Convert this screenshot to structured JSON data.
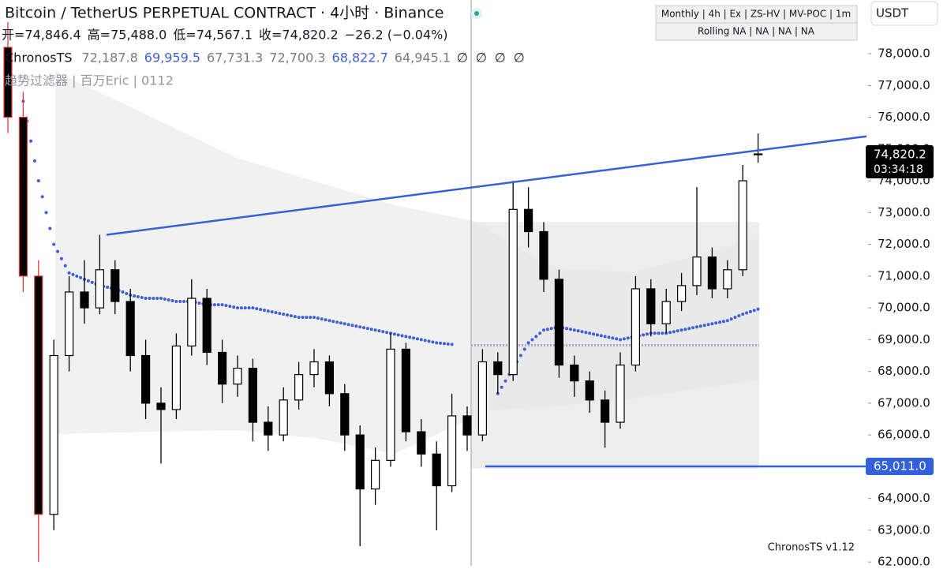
{
  "chart_data": {
    "type": "candlestick",
    "title": "Bitcoin / TetherUS PERPETUAL CONTRACT · 4小时 · Binance",
    "ohlc_text": [
      "开=74,846.4",
      "高=75,488.0",
      "低=74,567.1",
      "收=74,820.2",
      "−26.2 (−0.04%)"
    ],
    "indicator": {
      "name": "ChronosTS",
      "values": [
        72187.8,
        69959.5,
        67731.3,
        72700.3,
        68822.7,
        64945.1
      ],
      "value_labels": [
        "72,187.8",
        "69,959.5",
        "67,731.3",
        "72,700.3",
        "68,822.7",
        "64,945.1"
      ],
      "extras": [
        "∅",
        "∅",
        "∅",
        "∅"
      ]
    },
    "subtitle": "趋势过滤器 | 百万Eric | 0112",
    "info_box": [
      "Monthly | 4h | Ex | ZS-HV | MV-POC | 1m",
      "Rolling NA | NA | NA | NA"
    ],
    "currency": "USDT",
    "footer": "ChronosTS v1.12",
    "close_label": "74,820.2",
    "countdown": "03:34:18",
    "support": {
      "value": 65011,
      "label": "65,011.0"
    },
    "trend_line": {
      "start": 72300,
      "end": 75400
    },
    "ylim": [
      61880,
      79690
    ],
    "yticks": [
      {
        "value": 62000,
        "label": "62,000.0"
      },
      {
        "value": 63000,
        "label": "63,000.0"
      },
      {
        "value": 64000,
        "label": "64,000.0"
      },
      {
        "value": 65000,
        "label": "65,000.0"
      },
      {
        "value": 66000,
        "label": "66,000.0"
      },
      {
        "value": 67000,
        "label": "67,000.0"
      },
      {
        "value": 68000,
        "label": "68,000.0"
      },
      {
        "value": 69000,
        "label": "69,000.0"
      },
      {
        "value": 70000,
        "label": "70,000.0"
      },
      {
        "value": 71000,
        "label": "71,000.0"
      },
      {
        "value": 72000,
        "label": "72,000.0"
      },
      {
        "value": 73000,
        "label": "73,000.0"
      },
      {
        "value": 74000,
        "label": "74,000.0"
      },
      {
        "value": 75000,
        "label": "75,000.0"
      },
      {
        "value": 76000,
        "label": "76,000.0"
      },
      {
        "value": 77000,
        "label": "77,000.0"
      },
      {
        "value": 78000,
        "label": "78,000.0"
      }
    ],
    "candles": [
      {
        "open": 78200,
        "high": 79000,
        "low": 75500,
        "close": 76000
      },
      {
        "open": 76000,
        "high": 76800,
        "low": 70500,
        "close": 71000
      },
      {
        "open": 71000,
        "high": 71500,
        "low": 62000,
        "close": 63500
      },
      {
        "open": 63500,
        "high": 69000,
        "low": 63000,
        "close": 68500
      },
      {
        "open": 68500,
        "high": 71000,
        "low": 68000,
        "close": 70500
      },
      {
        "open": 70500,
        "high": 71500,
        "low": 69500,
        "close": 70000
      },
      {
        "open": 70000,
        "high": 72300,
        "low": 69800,
        "close": 71200
      },
      {
        "open": 71200,
        "high": 71500,
        "low": 69800,
        "close": 70200
      },
      {
        "open": 70200,
        "high": 70600,
        "low": 68000,
        "close": 68500
      },
      {
        "open": 68500,
        "high": 69000,
        "low": 66500,
        "close": 67000
      },
      {
        "open": 67000,
        "high": 67500,
        "low": 65100,
        "close": 66800
      },
      {
        "open": 66800,
        "high": 69200,
        "low": 66500,
        "close": 68800
      },
      {
        "open": 68800,
        "high": 70900,
        "low": 68500,
        "close": 70300
      },
      {
        "open": 70300,
        "high": 70600,
        "low": 68200,
        "close": 68600
      },
      {
        "open": 68600,
        "high": 69000,
        "low": 67000,
        "close": 67600
      },
      {
        "open": 67600,
        "high": 68500,
        "low": 67200,
        "close": 68100
      },
      {
        "open": 68100,
        "high": 68400,
        "low": 65800,
        "close": 66400
      },
      {
        "open": 66400,
        "high": 66900,
        "low": 65500,
        "close": 66000
      },
      {
        "open": 66000,
        "high": 67500,
        "low": 65800,
        "close": 67100
      },
      {
        "open": 67100,
        "high": 68300,
        "low": 66800,
        "close": 67900
      },
      {
        "open": 67900,
        "high": 68700,
        "low": 67500,
        "close": 68300
      },
      {
        "open": 68300,
        "high": 68500,
        "low": 66900,
        "close": 67300
      },
      {
        "open": 67300,
        "high": 67600,
        "low": 65500,
        "close": 66000
      },
      {
        "open": 66000,
        "high": 66300,
        "low": 62500,
        "close": 64300
      },
      {
        "open": 64300,
        "high": 65600,
        "low": 63800,
        "close": 65200
      },
      {
        "open": 65200,
        "high": 69200,
        "low": 65000,
        "close": 68700
      },
      {
        "open": 68700,
        "high": 68900,
        "low": 65800,
        "close": 66100
      },
      {
        "open": 66100,
        "high": 66500,
        "low": 65000,
        "close": 65400
      },
      {
        "open": 65400,
        "high": 65800,
        "low": 63000,
        "close": 64400
      },
      {
        "open": 64400,
        "high": 67300,
        "low": 64200,
        "close": 66600
      },
      {
        "open": 66600,
        "high": 66900,
        "low": 65500,
        "close": 66000
      },
      {
        "open": 66000,
        "high": 68700,
        "low": 65800,
        "close": 68300
      },
      {
        "open": 68300,
        "high": 68600,
        "low": 67300,
        "close": 67900
      },
      {
        "open": 67900,
        "high": 74000,
        "low": 67700,
        "close": 73100
      },
      {
        "open": 73100,
        "high": 73800,
        "low": 71900,
        "close": 72400
      },
      {
        "open": 72400,
        "high": 72700,
        "low": 70500,
        "close": 70900
      },
      {
        "open": 70900,
        "high": 71200,
        "low": 67800,
        "close": 68200
      },
      {
        "open": 68200,
        "high": 68500,
        "low": 67200,
        "close": 67700
      },
      {
        "open": 67700,
        "high": 68000,
        "low": 66700,
        "close": 67100
      },
      {
        "open": 67100,
        "high": 67400,
        "low": 65600,
        "close": 66400
      },
      {
        "open": 66400,
        "high": 68600,
        "low": 66200,
        "close": 68200
      },
      {
        "open": 68200,
        "high": 71000,
        "low": 68000,
        "close": 70600
      },
      {
        "open": 70600,
        "high": 70900,
        "low": 69100,
        "close": 69500
      },
      {
        "open": 69500,
        "high": 70600,
        "low": 69200,
        "close": 70200
      },
      {
        "open": 70200,
        "high": 71100,
        "low": 69900,
        "close": 70700
      },
      {
        "open": 70700,
        "high": 73800,
        "low": 70400,
        "close": 71600
      },
      {
        "open": 71600,
        "high": 71900,
        "low": 70300,
        "close": 70600
      },
      {
        "open": 70600,
        "high": 71500,
        "low": 70300,
        "close": 71200
      },
      {
        "open": 71200,
        "high": 74500,
        "low": 71000,
        "close": 74000
      },
      {
        "open": 74846.4,
        "high": 75488,
        "low": 74567.1,
        "close": 74820.2
      }
    ],
    "ma": [
      null,
      76500,
      74000,
      72000,
      71100,
      70900,
      70700,
      70600,
      70400,
      70300,
      70300,
      70200,
      70200,
      70100,
      70100,
      70000,
      70000,
      69900,
      69800,
      69700,
      69700,
      69600,
      69500,
      69400,
      69300,
      69200,
      69100,
      69000,
      68900,
      68850,
      null,
      null,
      null,
      null,
      null,
      null,
      null,
      null,
      null,
      null,
      null,
      null,
      null,
      null,
      null,
      null,
      null,
      null,
      null,
      null
    ],
    "ma2": [
      null,
      null,
      null,
      null,
      null,
      null,
      null,
      null,
      null,
      null,
      null,
      null,
      null,
      null,
      null,
      null,
      null,
      null,
      null,
      null,
      null,
      null,
      null,
      null,
      null,
      null,
      null,
      null,
      null,
      null,
      null,
      null,
      67300,
      68100,
      68900,
      69300,
      69400,
      69300,
      69200,
      69100,
      69000,
      69100,
      69200,
      69200,
      69300,
      69400,
      69500,
      69600,
      69800,
      69960
    ]
  }
}
